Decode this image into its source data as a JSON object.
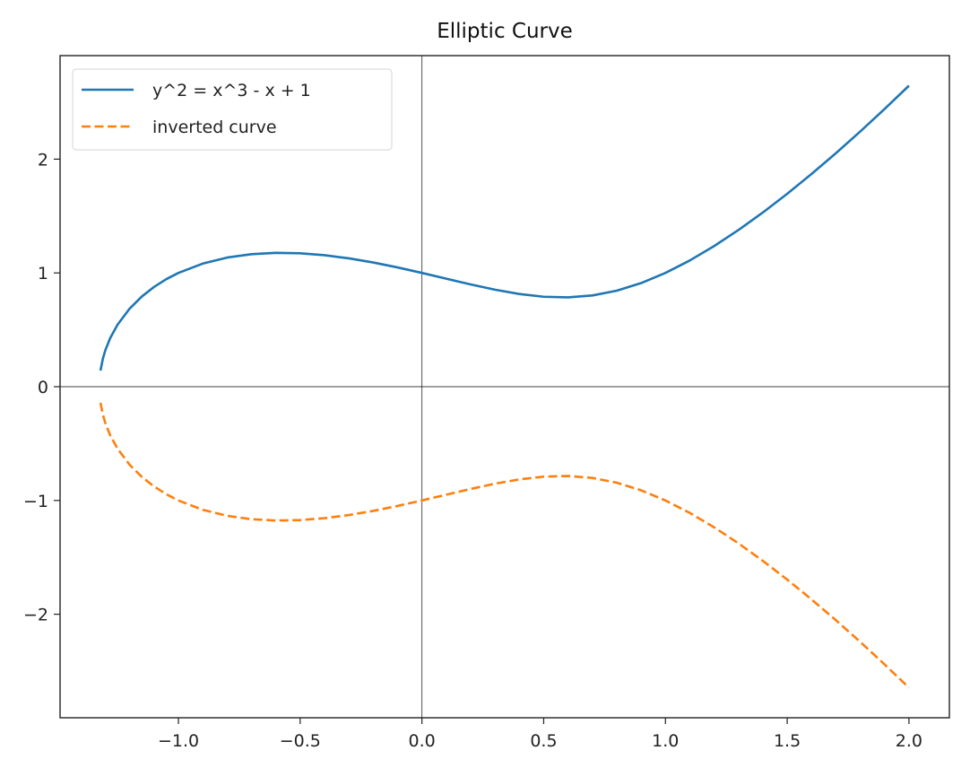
{
  "chart_data": {
    "type": "line",
    "title": "Elliptic Curve",
    "xlabel": "",
    "ylabel": "",
    "xlim": [
      -1.486,
      2.166
    ],
    "ylim": [
      -2.91,
      2.91
    ],
    "grid": false,
    "legend_placement": "upper-left",
    "x_ticks": [
      -1.0,
      -0.5,
      0.0,
      0.5,
      1.0,
      1.5,
      2.0
    ],
    "x_tick_labels": [
      "−1.0",
      "−0.5",
      "0.0",
      "0.5",
      "1.0",
      "1.5",
      "2.0"
    ],
    "y_ticks": [
      -2,
      -1,
      0,
      1,
      2
    ],
    "y_tick_labels": [
      "−2",
      "−1",
      "0",
      "1",
      "2"
    ],
    "reference_lines": {
      "horizontal_at": 0,
      "vertical_at": 0,
      "color": "#000000"
    },
    "x": [
      -1.32,
      -1.31,
      -1.3,
      -1.28,
      -1.25,
      -1.2,
      -1.15,
      -1.1,
      -1.05,
      -1.0,
      -0.9,
      -0.8,
      -0.7,
      -0.6,
      -0.5,
      -0.4,
      -0.3,
      -0.2,
      -0.1,
      0.0,
      0.1,
      0.2,
      0.3,
      0.4,
      0.5,
      0.6,
      0.7,
      0.8,
      0.9,
      1.0,
      1.1,
      1.2,
      1.3,
      1.4,
      1.5,
      1.6,
      1.7,
      1.8,
      1.9,
      2.0
    ],
    "series": [
      {
        "name": "y^2 = x^3 - x + 1",
        "color": "#1f77b4",
        "style": "solid",
        "values": [
          0.1415,
          0.2488,
          0.3209,
          0.4276,
          0.5449,
          0.687,
          0.7932,
          0.8769,
          0.9447,
          1.0,
          1.0821,
          1.1349,
          1.1649,
          1.1764,
          1.1726,
          1.1559,
          1.1283,
          1.0918,
          1.0483,
          1.0,
          0.9492,
          0.8989,
          0.8526,
          0.8149,
          0.7906,
          0.7849,
          0.8019,
          0.8438,
          0.9105,
          1.0,
          1.1095,
          1.2361,
          1.3773,
          1.531,
          1.6956,
          1.8698,
          2.0526,
          2.2432,
          2.4411,
          2.6458
        ]
      },
      {
        "name": "inverted curve",
        "color": "#ff7f0e",
        "style": "dashed",
        "values": [
          -0.1415,
          -0.2488,
          -0.3209,
          -0.4276,
          -0.5449,
          -0.687,
          -0.7932,
          -0.8769,
          -0.9447,
          -1.0,
          -1.0821,
          -1.1349,
          -1.1649,
          -1.1764,
          -1.1726,
          -1.1559,
          -1.1283,
          -1.0918,
          -1.0483,
          -1.0,
          -0.9492,
          -0.8989,
          -0.8526,
          -0.8149,
          -0.7906,
          -0.7849,
          -0.8019,
          -0.8438,
          -0.9105,
          -1.0,
          -1.1095,
          -1.2361,
          -1.3773,
          -1.531,
          -1.6956,
          -1.8698,
          -2.0526,
          -2.2432,
          -2.4411,
          -2.6458
        ]
      }
    ]
  }
}
